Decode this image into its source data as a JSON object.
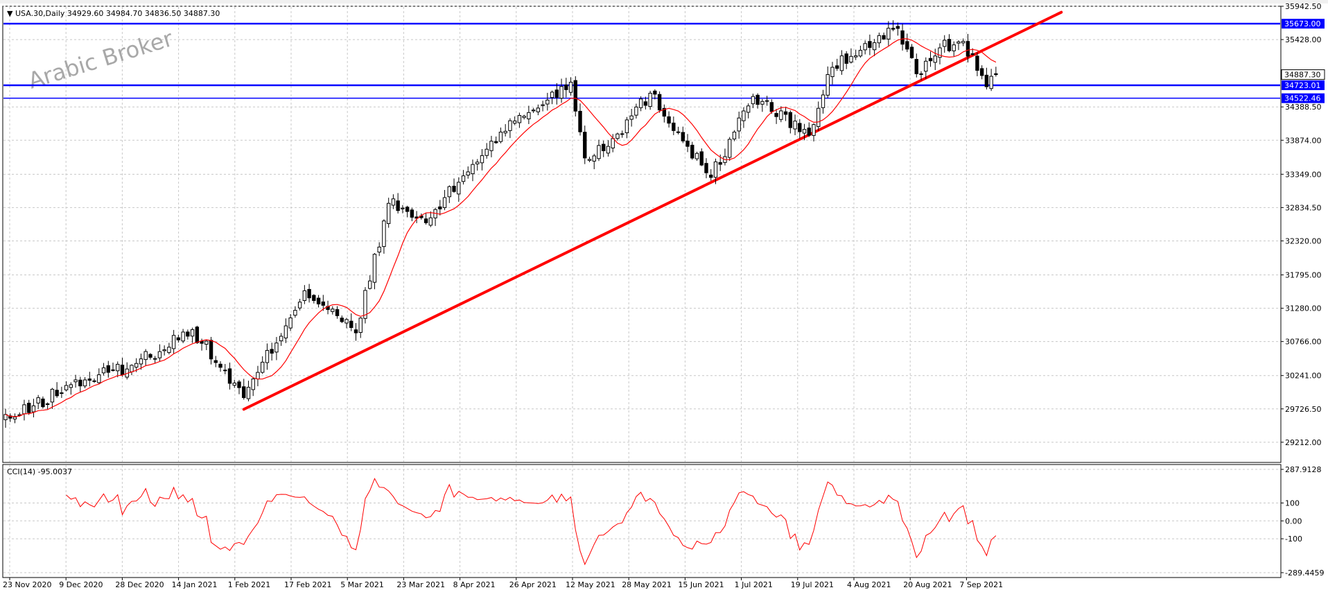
{
  "header": {
    "arrow": "▼",
    "text": "USA.30,Daily  34929.60 34984.70 34836.50 34887.30"
  },
  "watermark": "Arabic Broker",
  "colors": {
    "bull": "#ffffff",
    "bear": "#000000",
    "ma": "#ff0000",
    "trend": "#ff0000",
    "level": "#0000ff",
    "cci": "#ff0000",
    "grid": "#c8c8c8",
    "axis": "#000000"
  },
  "chart_data": [
    {
      "type": "candlestick",
      "ylim": [
        28900,
        35942.5
      ],
      "y_ticks": [
        "35942.50",
        "35428.00",
        "34388.50",
        "33874.00",
        "33349.00",
        "32834.50",
        "32320.00",
        "31795.00",
        "31280.00",
        "30766.00",
        "30241.00",
        "29726.50",
        "29212.00"
      ],
      "x_labels": [
        "23 Nov 2020",
        "9 Dec 2020",
        "28 Dec 2020",
        "14 Jan 2021",
        "1 Feb 2021",
        "17 Feb 2021",
        "5 Mar 2021",
        "23 Mar 2021",
        "8 Apr 2021",
        "26 Apr 2021",
        "12 May 2021",
        "28 May 2021",
        "15 Jun 2021",
        "1 Jul 2021",
        "19 Jul 2021",
        "4 Aug 2021",
        "20 Aug 2021",
        "7 Sep 2021"
      ],
      "key_closes": [
        [
          "2020-11-23",
          29600
        ],
        [
          "2020-12-09",
          30100
        ],
        [
          "2020-12-28",
          30400
        ],
        [
          "2021-01-14",
          30950
        ],
        [
          "2021-01-29",
          29900
        ],
        [
          "2021-02-17",
          31550
        ],
        [
          "2021-03-04",
          30900
        ],
        [
          "2021-03-15",
          32900
        ],
        [
          "2021-03-25",
          32600
        ],
        [
          "2021-04-08",
          33500
        ],
        [
          "2021-04-16",
          34000
        ],
        [
          "2021-05-07",
          34770
        ],
        [
          "2021-05-12",
          33600
        ],
        [
          "2021-05-20",
          33900
        ],
        [
          "2021-06-01",
          34600
        ],
        [
          "2021-06-18",
          33300
        ],
        [
          "2021-06-25",
          34000
        ],
        [
          "2021-07-01",
          34550
        ],
        [
          "2021-07-19",
          33950
        ],
        [
          "2021-07-26",
          35000
        ],
        [
          "2021-08-13",
          35600
        ],
        [
          "2021-08-19",
          34900
        ],
        [
          "2021-08-26",
          35300
        ],
        [
          "2021-09-02",
          35400
        ],
        [
          "2021-09-09",
          34700
        ],
        [
          "2021-09-13",
          34887.3
        ]
      ],
      "levels": [
        {
          "label": "35673.00",
          "value": 35673.0
        },
        {
          "label": "34723.01",
          "value": 34723.01
        },
        {
          "label": "34522.46",
          "value": 34522.46
        }
      ],
      "current_price": {
        "label": "34887.30",
        "value": 34887.3
      },
      "trendline": {
        "from": [
          "2021-01-29",
          29720
        ],
        "to": [
          "2021-10-01",
          35850
        ]
      }
    },
    {
      "type": "line",
      "title": "CCI(14) -95.0037",
      "ylim": [
        -289.4459,
        287.9128
      ],
      "y_ticks": [
        "287.9128",
        "100",
        "0.00",
        "-100",
        "-289.4459"
      ]
    }
  ]
}
